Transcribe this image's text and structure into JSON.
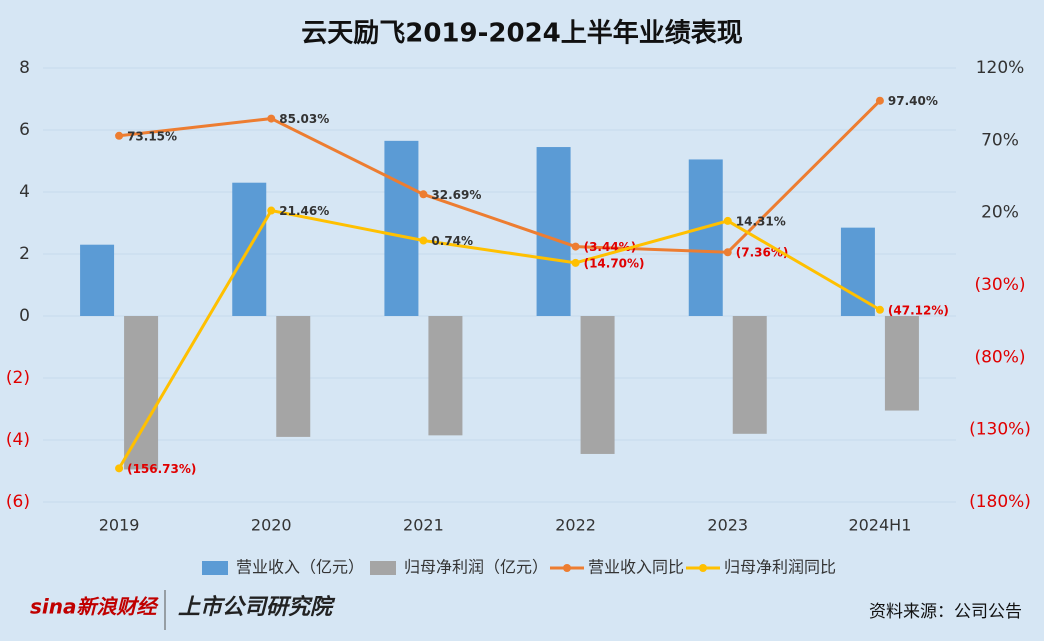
{
  "chart_data": {
    "type": "bar-line",
    "title": "云天励飞2019-2024上半年业绩表现",
    "categories": [
      "2019",
      "2020",
      "2021",
      "2022",
      "2023",
      "2024H1"
    ],
    "series": [
      {
        "name": "营业收入（亿元）",
        "type": "bar",
        "color": "#5b9bd5",
        "values": [
          2.3,
          4.3,
          5.65,
          5.45,
          5.05,
          2.85
        ]
      },
      {
        "name": "归母净利润（亿元）",
        "type": "bar",
        "color": "#a5a5a5",
        "values": [
          -4.95,
          -3.9,
          -3.85,
          -4.45,
          -3.8,
          -3.05
        ]
      },
      {
        "name": "营业收入同比",
        "type": "line",
        "axis": "y2",
        "color": "#ed7d31",
        "values": [
          73.15,
          85.03,
          32.69,
          -3.44,
          -7.36,
          97.4
        ],
        "value_labels": [
          "73.15%",
          "85.03%",
          "32.69%",
          "(3.44%)",
          "(7.36%)",
          "97.40%"
        ]
      },
      {
        "name": "归母净利润同比",
        "type": "line",
        "axis": "y2",
        "color": "#ffc000",
        "values": [
          -156.73,
          21.46,
          0.74,
          -14.7,
          14.31,
          -47.12
        ],
        "value_labels": [
          "(156.73%)",
          "21.46%",
          "0.74%",
          "(14.70%)",
          "14.31%",
          "(47.12%)"
        ]
      }
    ],
    "ylim": [
      -6,
      8
    ],
    "yticks": [
      8,
      6,
      4,
      2,
      0,
      {
        "value": -2,
        "label": "(2)"
      },
      {
        "value": -4,
        "label": "(4)"
      },
      {
        "value": -6,
        "label": "(6)"
      }
    ],
    "y2lim": [
      -180,
      120
    ],
    "y2ticks": [
      {
        "value": 120,
        "label": "120%"
      },
      {
        "value": 70,
        "label": "70%"
      },
      {
        "value": 20,
        "label": "20%"
      },
      {
        "value": -30,
        "label": "(30%)"
      },
      {
        "value": -80,
        "label": "(80%)"
      },
      {
        "value": -130,
        "label": "(130%)"
      },
      {
        "value": -180,
        "label": "(180%)"
      }
    ],
    "grid": true,
    "legend": "bottom",
    "source": "资料来源：公司公告",
    "logo_left": "sina新浪财经",
    "logo_right": "上市公司研究院"
  }
}
